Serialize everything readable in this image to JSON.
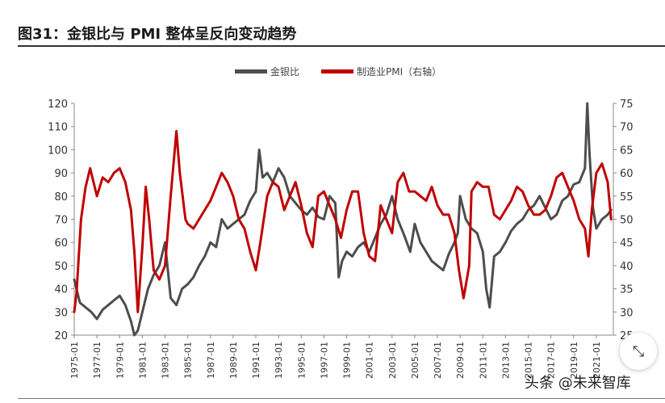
{
  "header": {
    "title": "图31：金银比与 PMI 整体呈反向变动趋势"
  },
  "watermark": "头条 @未来智库",
  "fab_icon": "collapse-icon",
  "colors": {
    "gold_silver": "#4d4d4d",
    "pmi": "#c00000"
  },
  "chart_data": {
    "type": "line",
    "legend": [
      "金银比",
      "制造业PMI（右轴）"
    ],
    "legend_position": "top-center",
    "y_left": {
      "ticks": [
        20,
        30,
        40,
        50,
        60,
        70,
        80,
        90,
        100,
        110,
        120
      ],
      "range": [
        20,
        120
      ]
    },
    "y_right": {
      "ticks": [
        25,
        30,
        35,
        40,
        45,
        50,
        55,
        60,
        65,
        70,
        75
      ],
      "range": [
        25,
        75
      ]
    },
    "x_ticks": [
      "1975-01",
      "1977-01",
      "1979-01",
      "1981-01",
      "1983-01",
      "1985-01",
      "1987-01",
      "1989-01",
      "1991-01",
      "1993-01",
      "1995-01",
      "1997-01",
      "1999-01",
      "2001-01",
      "2003-01",
      "2005-01",
      "2007-01",
      "2009-01",
      "2011-01",
      "2013-01",
      "2015-01",
      "2017-01",
      "2019-01",
      "2021-01"
    ],
    "x_range": [
      1975.0,
      2022.5
    ],
    "series": [
      {
        "name": "金银比",
        "axis": "left",
        "x": [
          1975.0,
          1975.5,
          1976.0,
          1976.5,
          1977.0,
          1977.5,
          1978.0,
          1978.5,
          1979.0,
          1979.5,
          1980.0,
          1980.3,
          1980.6,
          1981.0,
          1981.5,
          1982.0,
          1982.5,
          1983.0,
          1983.5,
          1984.0,
          1984.5,
          1985.0,
          1985.5,
          1986.0,
          1986.5,
          1987.0,
          1987.5,
          1988.0,
          1988.5,
          1989.0,
          1989.5,
          1990.0,
          1990.5,
          1991.0,
          1991.3,
          1991.6,
          1992.0,
          1992.5,
          1993.0,
          1993.5,
          1994.0,
          1994.5,
          1995.0,
          1995.5,
          1996.0,
          1996.5,
          1997.0,
          1997.5,
          1998.0,
          1998.3,
          1998.6,
          1999.0,
          1999.5,
          2000.0,
          2000.5,
          2001.0,
          2001.5,
          2002.0,
          2002.5,
          2003.0,
          2003.5,
          2004.0,
          2004.3,
          2004.6,
          2005.0,
          2005.5,
          2006.0,
          2006.5,
          2007.0,
          2007.5,
          2008.0,
          2008.5,
          2008.8,
          2009.0,
          2009.5,
          2010.0,
          2010.5,
          2011.0,
          2011.3,
          2011.6,
          2012.0,
          2012.5,
          2013.0,
          2013.5,
          2014.0,
          2014.5,
          2015.0,
          2015.5,
          2016.0,
          2016.5,
          2017.0,
          2017.5,
          2018.0,
          2018.5,
          2019.0,
          2019.5,
          2020.0,
          2020.2,
          2020.4,
          2020.7,
          2021.0,
          2021.5,
          2022.0,
          2022.3
        ],
        "values": [
          44,
          34,
          32,
          30,
          27,
          31,
          33,
          35,
          37,
          33,
          26,
          20,
          22,
          30,
          40,
          46,
          50,
          60,
          36,
          33,
          40,
          42,
          45,
          50,
          54,
          60,
          58,
          70,
          66,
          68,
          70,
          72,
          78,
          82,
          100,
          88,
          90,
          86,
          92,
          88,
          80,
          77,
          74,
          72,
          75,
          71,
          70,
          80,
          77,
          45,
          52,
          56,
          54,
          58,
          60,
          56,
          62,
          68,
          72,
          80,
          70,
          64,
          60,
          56,
          68,
          60,
          56,
          52,
          50,
          48,
          55,
          60,
          64,
          80,
          70,
          66,
          64,
          56,
          40,
          32,
          54,
          56,
          60,
          65,
          68,
          70,
          74,
          76,
          80,
          75,
          70,
          72,
          78,
          80,
          85,
          86,
          92,
          120,
          98,
          75,
          66,
          70,
          72,
          74
        ],
        "color": "#4d4d4d"
      },
      {
        "name": "制造业PMI（右轴）",
        "axis": "right",
        "x": [
          1975.0,
          1975.2,
          1975.6,
          1976.0,
          1976.4,
          1977.0,
          1977.5,
          1978.0,
          1978.5,
          1979.0,
          1979.5,
          1980.0,
          1980.3,
          1980.6,
          1981.0,
          1981.3,
          1981.6,
          1982.0,
          1982.5,
          1983.0,
          1983.5,
          1984.0,
          1984.3,
          1984.8,
          1985.0,
          1985.5,
          1986.0,
          1986.5,
          1987.0,
          1987.5,
          1988.0,
          1988.5,
          1989.0,
          1989.5,
          1990.0,
          1990.5,
          1991.0,
          1991.4,
          1992.0,
          1992.5,
          1993.0,
          1993.5,
          1994.0,
          1994.5,
          1995.0,
          1995.5,
          1996.0,
          1996.5,
          1997.0,
          1997.5,
          1998.0,
          1998.5,
          1999.0,
          1999.5,
          2000.0,
          2000.5,
          2001.0,
          2001.5,
          2002.0,
          2002.5,
          2003.0,
          2003.5,
          2004.0,
          2004.5,
          2005.0,
          2005.5,
          2006.0,
          2006.5,
          2007.0,
          2007.5,
          2008.0,
          2008.5,
          2008.9,
          2009.3,
          2009.8,
          2010.0,
          2010.5,
          2011.0,
          2011.5,
          2012.0,
          2012.5,
          2013.0,
          2013.5,
          2014.0,
          2014.5,
          2015.0,
          2015.5,
          2016.0,
          2016.5,
          2017.0,
          2017.5,
          2018.0,
          2018.5,
          2019.0,
          2019.5,
          2020.0,
          2020.3,
          2020.6,
          2021.0,
          2021.5,
          2022.0,
          2022.3
        ],
        "values": [
          30,
          34,
          50,
          57,
          61,
          55,
          59,
          58,
          60,
          61,
          58,
          52,
          43,
          30,
          44,
          57,
          50,
          39,
          37,
          40,
          55,
          69,
          60,
          50,
          49,
          48,
          50,
          52,
          54,
          57,
          60,
          58,
          55,
          50,
          48,
          43,
          39,
          45,
          55,
          58,
          57,
          52,
          55,
          58,
          53,
          47,
          44,
          55,
          56,
          53,
          50,
          46,
          52,
          56,
          56,
          47,
          42,
          41,
          53,
          50,
          47,
          58,
          60,
          56,
          56,
          55,
          54,
          57,
          53,
          51,
          51,
          47,
          39,
          33,
          40,
          56,
          58,
          57,
          57,
          51,
          50,
          52,
          54,
          57,
          56,
          53,
          51,
          51,
          52,
          55,
          59,
          60,
          57,
          54,
          50,
          48,
          42,
          52,
          60,
          62,
          58,
          50
        ],
        "color": "#c00000"
      }
    ]
  }
}
